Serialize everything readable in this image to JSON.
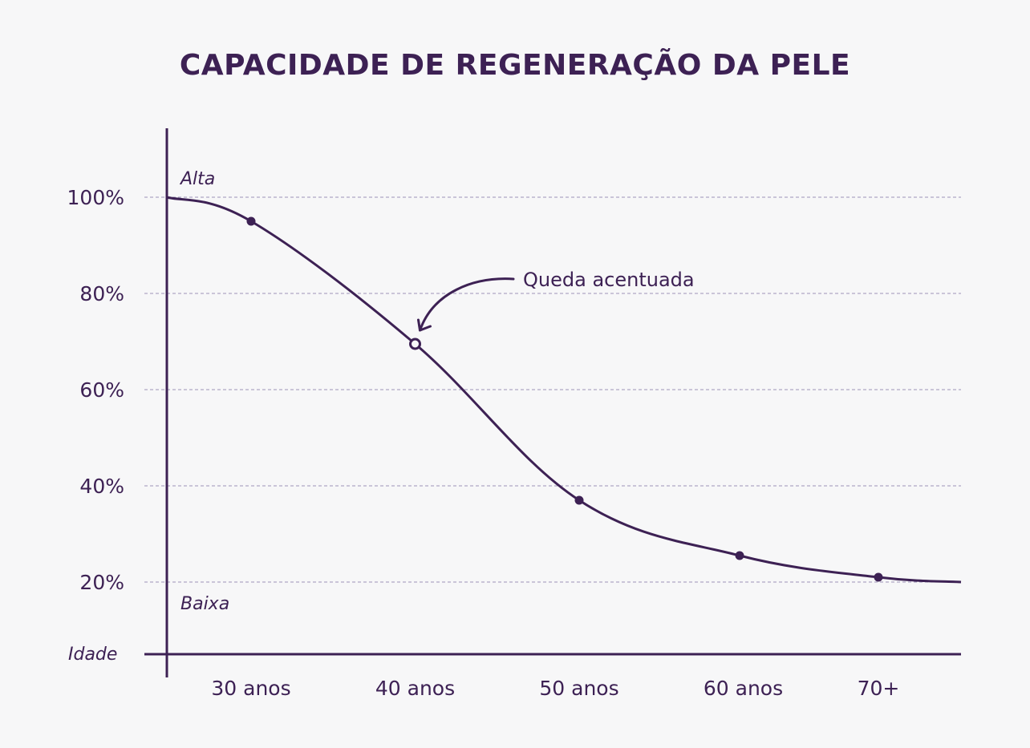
{
  "colors": {
    "primary": "#3d2154",
    "grid": "#9d93b8",
    "background": "#f7f7f8"
  },
  "chart_data": {
    "type": "line",
    "title": "CAPACIDADE DE REGENERAÇÃO DA PELE",
    "xlabel": "Idade",
    "ylabel": "",
    "categories": [
      "30 anos",
      "40 anos",
      "50 anos",
      "60 anos",
      "70+"
    ],
    "x_ticks": [
      "30 anos",
      "40 anos",
      "50 anos",
      "60 anos",
      "70+"
    ],
    "y_ticks": [
      "100%",
      "80%",
      "60%",
      "40%",
      "20%"
    ],
    "y_tick_values": [
      100,
      80,
      60,
      40,
      20
    ],
    "ylim": [
      5,
      115
    ],
    "grid": true,
    "curve_start": {
      "x": "25",
      "y": 100
    },
    "curve_end": {
      "x": "74",
      "y": 20
    },
    "series": [
      {
        "values": [
          95,
          69.5,
          37,
          25.5,
          21
        ]
      }
    ],
    "level_labels": {
      "high": "Alta",
      "low": "Baixa"
    },
    "annotation": {
      "text": "Queda acentuada",
      "target_category": "40 anos"
    }
  }
}
